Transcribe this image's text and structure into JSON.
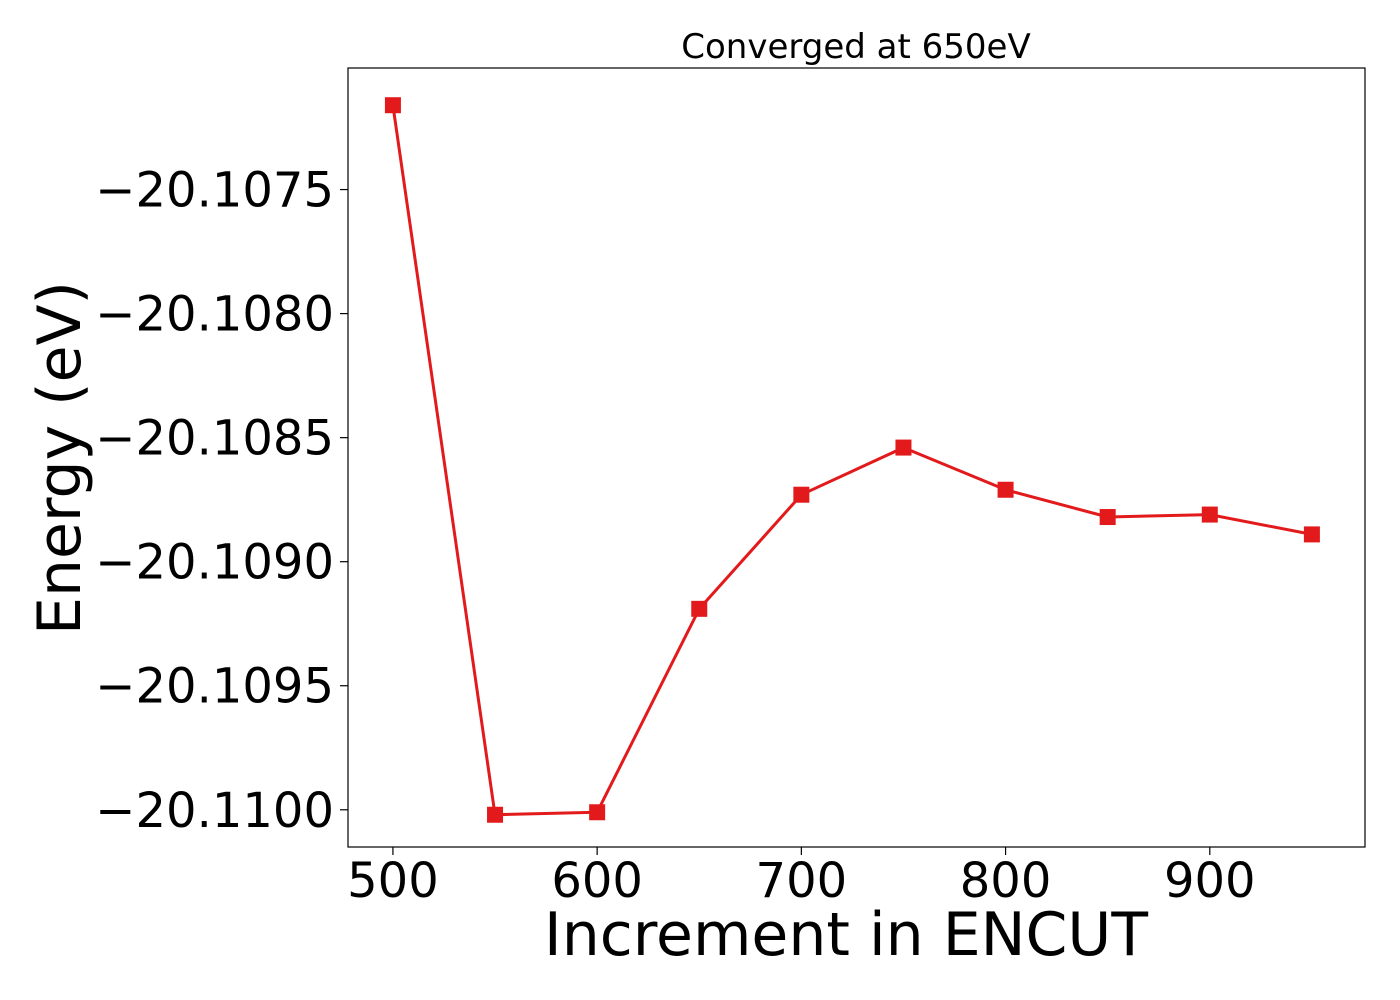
{
  "chart_data": {
    "type": "line",
    "title": "Converged at 650eV",
    "xlabel": "Increment in ENCUT",
    "ylabel": "Energy (eV)",
    "x": [
      500,
      550,
      600,
      650,
      700,
      750,
      800,
      850,
      900,
      950
    ],
    "series": [
      {
        "values": [
          -20.10716,
          -20.11002,
          -20.11001,
          -20.10919,
          -20.10873,
          -20.10854,
          -20.10871,
          -20.10882,
          -20.10881,
          -20.10889
        ],
        "color": "#e31a1c",
        "marker": "square"
      }
    ],
    "xlim": [
      478,
      976
    ],
    "ylim": [
      -20.11015,
      -20.10701
    ],
    "xticks": [
      500,
      600,
      700,
      800,
      900
    ],
    "xtick_labels": [
      "500",
      "600",
      "700",
      "800",
      "900"
    ],
    "yticks": [
      -20.1075,
      -20.108,
      -20.1085,
      -20.109,
      -20.1095,
      -20.11
    ],
    "ytick_labels": [
      "−20.1075",
      "−20.1080",
      "−20.1085",
      "−20.1090",
      "−20.1095",
      "−20.1100"
    ],
    "grid": false,
    "legend": "none"
  }
}
